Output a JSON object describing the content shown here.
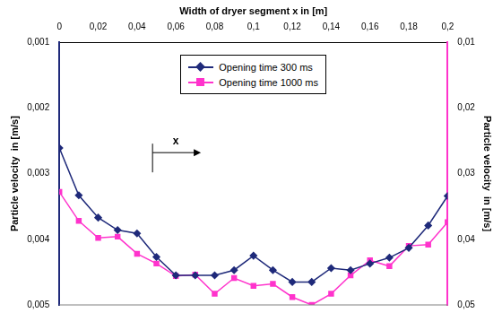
{
  "chart_data": {
    "type": "line",
    "x_label": "Width of dryer segment x in [m]",
    "y_label": "Particle velocity  in [m/s]",
    "y2_label": "Particle velocity  in [m/s]",
    "annotations": [
      "x"
    ],
    "x": [
      0,
      0.01,
      0.02,
      0.03,
      0.04,
      0.05,
      0.06,
      0.07,
      0.08,
      0.09,
      0.1,
      0.11,
      0.12,
      0.13,
      0.14,
      0.15,
      0.16,
      0.17,
      0.18,
      0.19,
      0.2
    ],
    "series": [
      {
        "name": "Opening time 300 ms",
        "color": "#1f2a7a",
        "marker": "diamond",
        "values": [
          0.00261,
          0.00333,
          0.00367,
          0.00386,
          0.00391,
          0.00427,
          0.00455,
          0.00455,
          0.00455,
          0.00447,
          0.00425,
          0.00447,
          0.00465,
          0.00465,
          0.00444,
          0.00447,
          0.00437,
          0.00428,
          0.00413,
          0.00379,
          0.00334
        ]
      },
      {
        "name": "Opening time 1000 ms",
        "color": "#ff33cc",
        "marker": "square",
        "values": [
          0.00328,
          0.00372,
          0.00398,
          0.00396,
          0.00422,
          0.00437,
          0.00456,
          0.00454,
          0.00483,
          0.00459,
          0.00471,
          0.00468,
          0.00488,
          0.005,
          0.00483,
          0.00455,
          0.00432,
          0.00441,
          0.0041,
          0.00408,
          0.00374
        ]
      }
    ],
    "xlim": [
      0,
      0.2
    ],
    "xticks": [
      0,
      {
        "value": 0.02,
        "label": "0,02"
      },
      {
        "value": 0.04,
        "label": "0,04"
      },
      {
        "value": 0.06,
        "label": "0,06"
      },
      {
        "value": 0.08,
        "label": "0,08"
      },
      {
        "value": 0.1,
        "label": "0,1"
      },
      {
        "value": 0.12,
        "label": "0,12"
      },
      {
        "value": 0.14,
        "label": "0,14"
      },
      {
        "value": 0.16,
        "label": "0,16"
      },
      {
        "value": 0.18,
        "label": "0,18"
      },
      {
        "value": 0.2,
        "label": "0,2"
      }
    ],
    "ylim": [
      0.001,
      0.005
    ],
    "yticks": [
      {
        "value": 0.001,
        "label": "0,001"
      },
      {
        "value": 0.002,
        "label": "0,002"
      },
      {
        "value": 0.003,
        "label": "0,003"
      },
      {
        "value": 0.004,
        "label": "0,004"
      },
      {
        "value": 0.005,
        "label": "0,005"
      }
    ],
    "y2lim": [
      0.01,
      0.05
    ],
    "y2ticks": [
      {
        "value": 0.01,
        "label": "0,01"
      },
      {
        "value": 0.02,
        "label": "0,02"
      },
      {
        "value": 0.03,
        "label": "0,03"
      },
      {
        "value": 0.04,
        "label": "0,04"
      },
      {
        "value": 0.05,
        "label": "0,05"
      }
    ],
    "grid": false,
    "legend": "top"
  }
}
